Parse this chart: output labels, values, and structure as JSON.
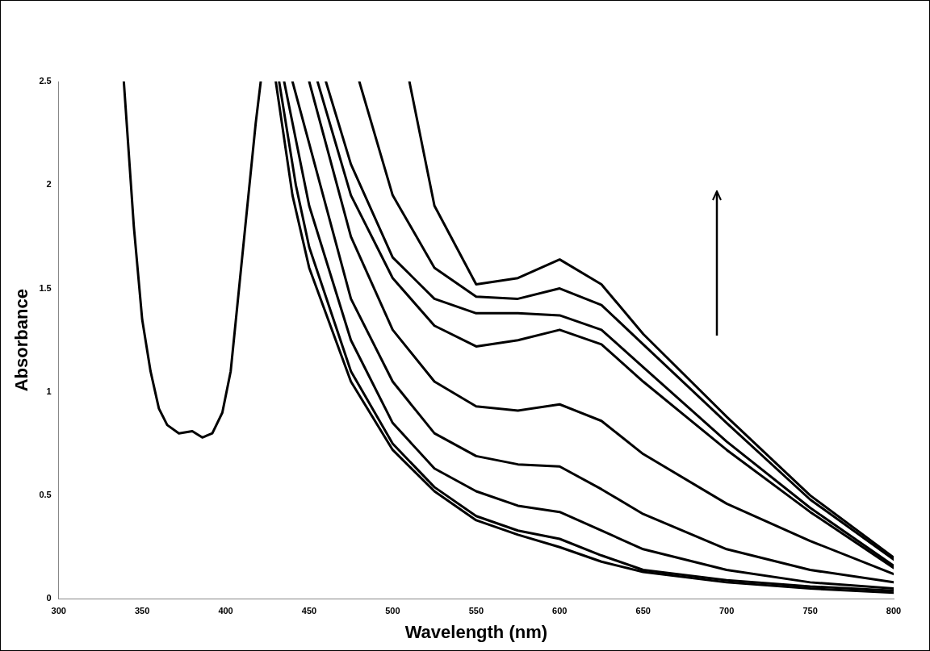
{
  "chart_data": {
    "type": "line",
    "xlabel": "Wavelength (nm)",
    "ylabel": "Absorbance",
    "xlim": [
      300,
      800
    ],
    "xticks": [
      300,
      350,
      400,
      450,
      500,
      550,
      600,
      650,
      700,
      750,
      800
    ],
    "ylim": [
      0,
      2.5
    ],
    "yticks": [
      0,
      0.5,
      1,
      1.5,
      2,
      2.5
    ],
    "series": [
      {
        "color": "#000000",
        "x": [
          339,
          345,
          350,
          355,
          360,
          365,
          372,
          380,
          386,
          392,
          398,
          403,
          408,
          413,
          418,
          421
        ],
        "values": [
          2.5,
          1.8,
          1.35,
          1.1,
          0.92,
          0.84,
          0.8,
          0.81,
          0.78,
          0.8,
          0.9,
          1.1,
          1.5,
          1.9,
          2.3,
          2.5
        ]
      },
      {
        "color": "#000000",
        "x": [
          430,
          440,
          450,
          475,
          500,
          525,
          550,
          575,
          600,
          625,
          650,
          700,
          750,
          800
        ],
        "values": [
          2.5,
          1.95,
          1.6,
          1.05,
          0.72,
          0.52,
          0.38,
          0.31,
          0.25,
          0.18,
          0.13,
          0.08,
          0.05,
          0.03
        ]
      },
      {
        "color": "#000000",
        "x": [
          432,
          442,
          450,
          475,
          500,
          525,
          550,
          575,
          600,
          625,
          650,
          700,
          750,
          800
        ],
        "values": [
          2.5,
          2.0,
          1.7,
          1.1,
          0.75,
          0.54,
          0.4,
          0.33,
          0.29,
          0.21,
          0.14,
          0.09,
          0.06,
          0.04
        ]
      },
      {
        "color": "#000000",
        "x": [
          435,
          450,
          475,
          500,
          525,
          550,
          575,
          600,
          625,
          650,
          700,
          750,
          800
        ],
        "values": [
          2.5,
          1.9,
          1.25,
          0.85,
          0.63,
          0.52,
          0.45,
          0.42,
          0.33,
          0.24,
          0.14,
          0.08,
          0.05
        ]
      },
      {
        "color": "#000000",
        "x": [
          440,
          450,
          475,
          500,
          525,
          550,
          575,
          600,
          625,
          650,
          700,
          750,
          800
        ],
        "values": [
          2.5,
          2.2,
          1.45,
          1.05,
          0.8,
          0.69,
          0.65,
          0.64,
          0.53,
          0.41,
          0.24,
          0.14,
          0.08
        ]
      },
      {
        "color": "#000000",
        "x": [
          450,
          475,
          500,
          525,
          550,
          575,
          600,
          625,
          650,
          700,
          750,
          800
        ],
        "values": [
          2.5,
          1.75,
          1.3,
          1.05,
          0.93,
          0.91,
          0.94,
          0.86,
          0.7,
          0.46,
          0.28,
          0.12
        ]
      },
      {
        "color": "#000000",
        "x": [
          455,
          475,
          500,
          525,
          550,
          575,
          600,
          625,
          650,
          700,
          750,
          800
        ],
        "values": [
          2.5,
          1.95,
          1.55,
          1.32,
          1.22,
          1.25,
          1.3,
          1.23,
          1.05,
          0.72,
          0.42,
          0.15
        ]
      },
      {
        "color": "#000000",
        "x": [
          460,
          475,
          500,
          525,
          550,
          575,
          600,
          625,
          650,
          700,
          750,
          800
        ],
        "values": [
          2.5,
          2.1,
          1.65,
          1.45,
          1.38,
          1.38,
          1.37,
          1.3,
          1.12,
          0.76,
          0.44,
          0.16
        ]
      },
      {
        "color": "#000000",
        "x": [
          480,
          500,
          525,
          550,
          575,
          600,
          625,
          650,
          700,
          750,
          800
        ],
        "values": [
          2.5,
          1.95,
          1.6,
          1.46,
          1.45,
          1.5,
          1.42,
          1.23,
          0.85,
          0.48,
          0.19
        ]
      },
      {
        "color": "#000000",
        "x": [
          510,
          525,
          550,
          575,
          600,
          625,
          650,
          700,
          750,
          800
        ],
        "values": [
          2.5,
          1.9,
          1.52,
          1.55,
          1.64,
          1.52,
          1.28,
          0.88,
          0.5,
          0.2
        ]
      }
    ]
  }
}
